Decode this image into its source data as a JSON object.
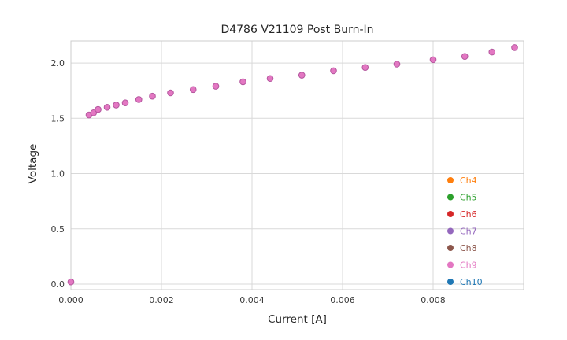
{
  "chart_data": {
    "type": "scatter",
    "title": "D4786 V21109 Post Burn-In",
    "xlabel": "Current [A]",
    "ylabel": "Voltage",
    "xlim": [
      0.0,
      0.01
    ],
    "ylim": [
      -0.05,
      2.2
    ],
    "grid": true,
    "xticks": [
      {
        "value": 0.0,
        "label": "0.000"
      },
      {
        "value": 0.002,
        "label": "0.002"
      },
      {
        "value": 0.004,
        "label": "0.004"
      },
      {
        "value": 0.006,
        "label": "0.006"
      },
      {
        "value": 0.008,
        "label": "0.008"
      }
    ],
    "yticks": [
      {
        "value": 0.0,
        "label": "0.0"
      },
      {
        "value": 0.5,
        "label": "0.5"
      },
      {
        "value": 1.0,
        "label": "1.0"
      },
      {
        "value": 1.5,
        "label": "1.5"
      },
      {
        "value": 2.0,
        "label": "2.0"
      }
    ],
    "x": [
      0.0,
      0.0004,
      0.0005,
      0.0006,
      0.0008,
      0.001,
      0.0012,
      0.0015,
      0.0018,
      0.0022,
      0.0027,
      0.0032,
      0.0038,
      0.0044,
      0.0051,
      0.0058,
      0.0065,
      0.0072,
      0.008,
      0.0087,
      0.0093,
      0.0098
    ],
    "y": [
      0.02,
      1.53,
      1.55,
      1.58,
      1.6,
      1.62,
      1.64,
      1.67,
      1.7,
      1.73,
      1.76,
      1.79,
      1.83,
      1.86,
      1.89,
      1.93,
      1.96,
      1.99,
      2.03,
      2.06,
      2.1,
      2.14
    ],
    "visible_series": "Ch9",
    "marker": {
      "color": "#e377c2",
      "edge_color": "#b4579e",
      "radius": 3.8
    },
    "legend": {
      "position": "lower right",
      "entries": [
        {
          "label": "Ch4",
          "color": "#ff7f0e"
        },
        {
          "label": "Ch5",
          "color": "#2ca02c"
        },
        {
          "label": "Ch6",
          "color": "#d62728"
        },
        {
          "label": "Ch7",
          "color": "#9467bd"
        },
        {
          "label": "Ch8",
          "color": "#8c564b"
        },
        {
          "label": "Ch9",
          "color": "#e377c2"
        },
        {
          "label": "Ch10",
          "color": "#1f77b4"
        }
      ]
    },
    "style": {
      "grid_color": "#d9d9d9",
      "border_color": "#cccccc",
      "tick_label_color": "#3b3b3b",
      "background": "#ffffff"
    }
  }
}
